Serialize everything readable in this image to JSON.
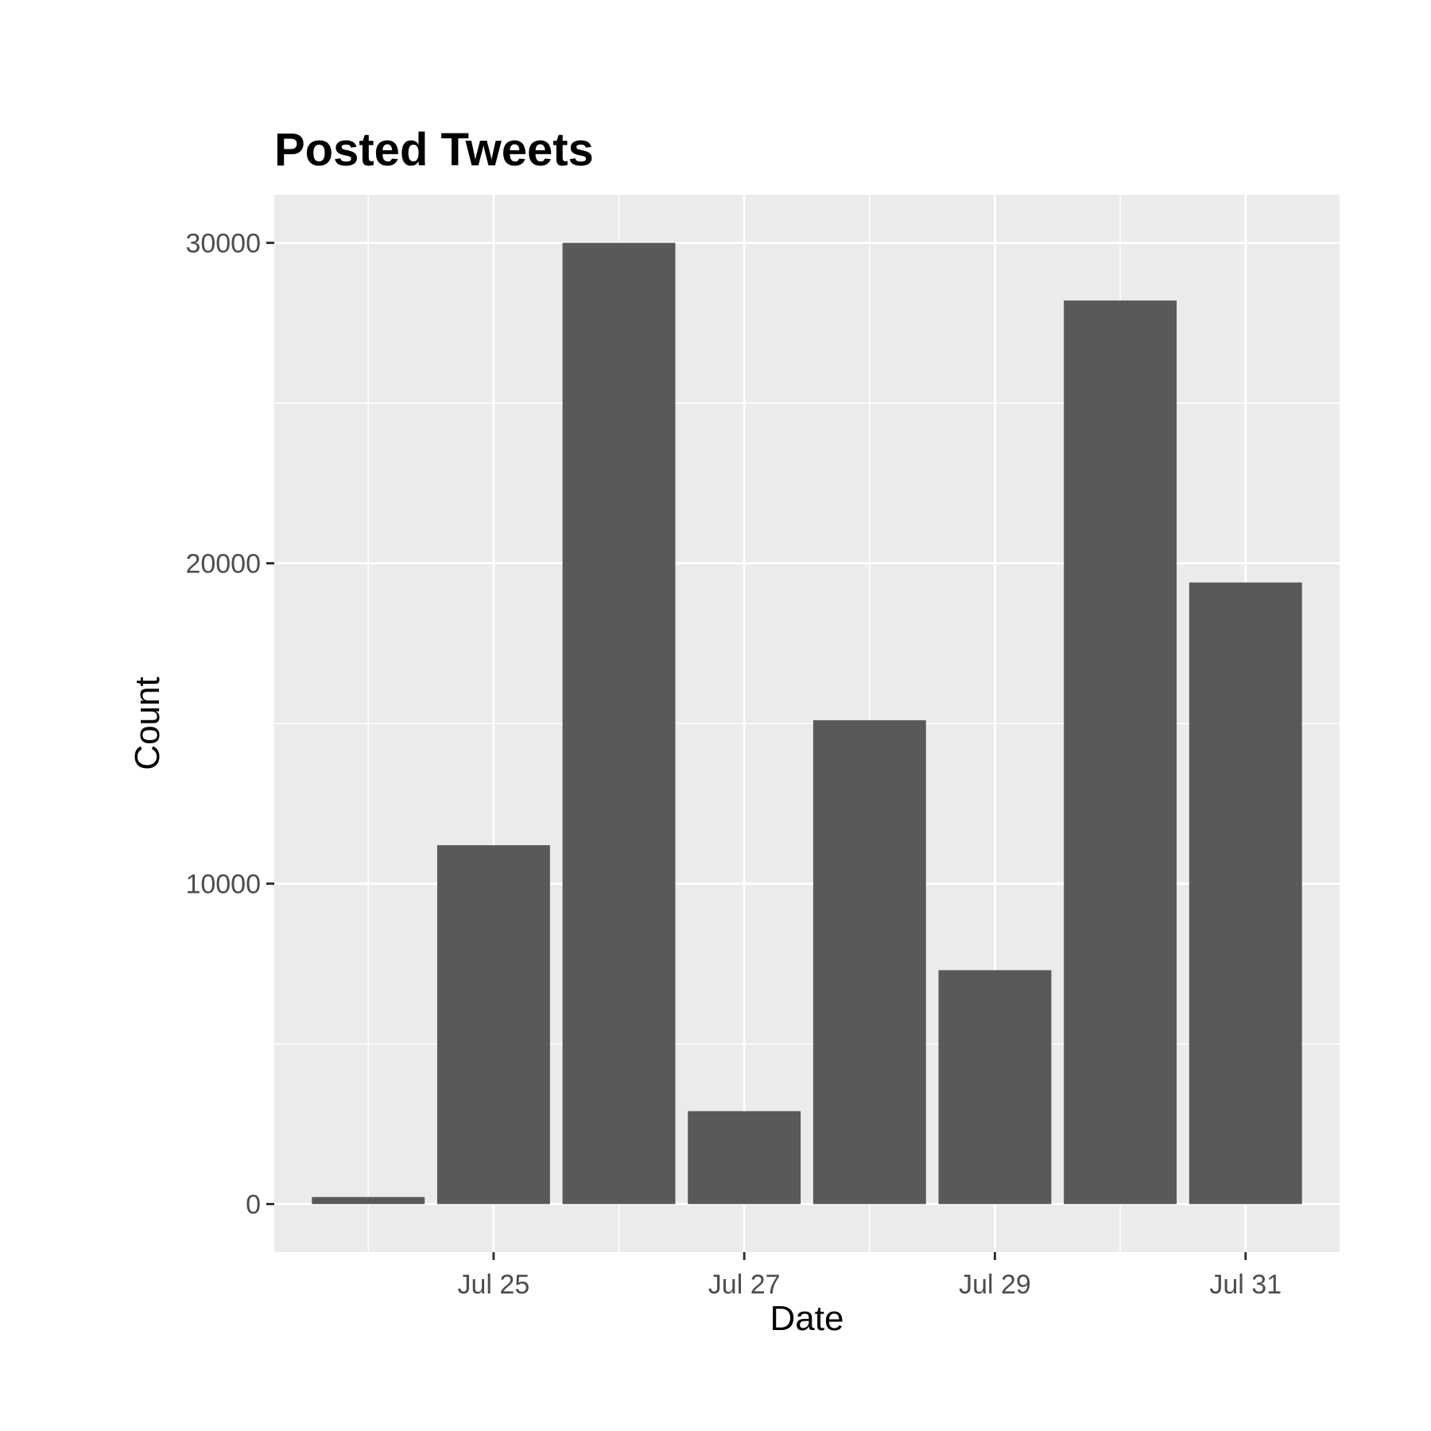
{
  "chart_data": {
    "type": "bar",
    "title": "Posted Tweets",
    "xlabel": "Date",
    "ylabel": "Count",
    "x": [
      "2020-07-24",
      "2020-07-25",
      "2020-07-26",
      "2020-07-27",
      "2020-07-28",
      "2020-07-29",
      "2020-07-30",
      "2020-07-31"
    ],
    "values": [
      220,
      11200,
      30000,
      2900,
      15100,
      7300,
      28200,
      19400
    ],
    "ylim": [
      -1500,
      31500
    ],
    "xlim": [
      "2020-07-23 06:00",
      "2020-07-31 18:00"
    ],
    "x_ticks": [
      {
        "date": "2020-07-25",
        "label": "Jul 25"
      },
      {
        "date": "2020-07-27",
        "label": "Jul 27"
      },
      {
        "date": "2020-07-29",
        "label": "Jul 29"
      },
      {
        "date": "2020-07-31",
        "label": "Jul 31"
      }
    ],
    "y_ticks": [
      0,
      10000,
      20000,
      30000
    ],
    "y_tick_labels": [
      "0",
      "10000",
      "20000",
      "30000"
    ],
    "grid": true,
    "legend": "none",
    "colors": {
      "bar": "#595959",
      "panel_background": "#ebebeb",
      "grid": "#ffffff",
      "tick_text": "#4d4d4d",
      "axis_tick": "#333333",
      "title_text": "#000000"
    }
  }
}
